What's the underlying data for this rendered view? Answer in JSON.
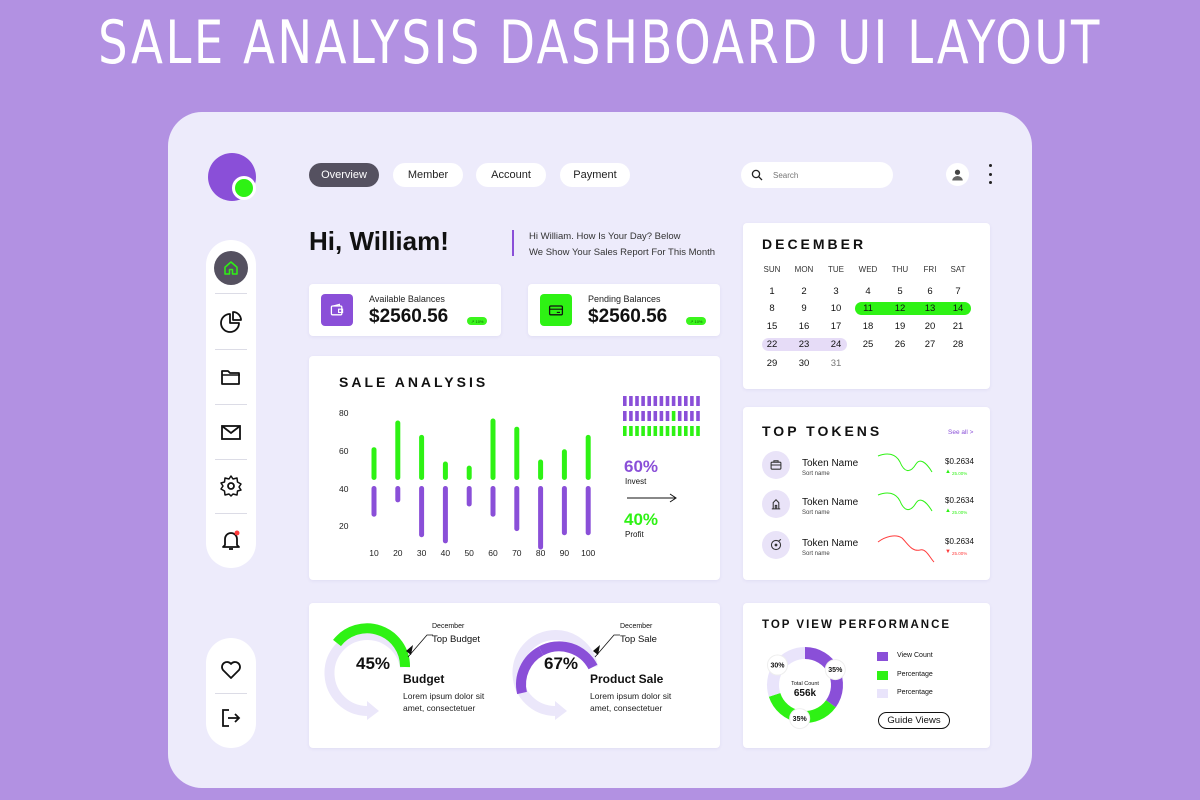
{
  "headline": "SALE ANALYSIS DASHBOARD UI LAYOUT",
  "colors": {
    "accent_purple": "#8a4fd8",
    "accent_green": "#2ef214",
    "background": "#b291e2",
    "panel": "#edebfb",
    "dark_pill": "#555160",
    "down_red": "#ff3b3b"
  },
  "sidebar": {
    "items": [
      {
        "icon": "home-icon"
      },
      {
        "icon": "pie-chart-icon"
      },
      {
        "icon": "folder-icon"
      },
      {
        "icon": "mail-icon"
      },
      {
        "icon": "gear-icon"
      },
      {
        "icon": "bell-icon"
      }
    ],
    "bottom_items": [
      {
        "icon": "heart-icon"
      },
      {
        "icon": "logout-icon"
      }
    ]
  },
  "nav": {
    "tabs": [
      {
        "label": "Overview",
        "active": true
      },
      {
        "label": "Member",
        "active": false
      },
      {
        "label": "Account",
        "active": false
      },
      {
        "label": "Payment",
        "active": false
      }
    ]
  },
  "search": {
    "placeholder": "Search"
  },
  "greeting": {
    "title": "Hi, William!",
    "line1": "Hi William. How Is Your Day? Below",
    "line2": "We Show Your Sales Report For This Month"
  },
  "balances": [
    {
      "label": "Available Balances",
      "value": "$2560.56",
      "badge": "↗ 10%"
    },
    {
      "label": "Pending Balances",
      "value": "$2560.56",
      "badge": "↗ 10%"
    }
  ],
  "sale_analysis": {
    "title": "SALE ANALYSIS",
    "invest_pct": "60%",
    "invest_label": "Invest",
    "profit_pct": "40%",
    "profit_label": "Profit"
  },
  "chart_data": {
    "type": "bar",
    "title": "SALE ANALYSIS",
    "categories": [
      "10",
      "20",
      "30",
      "40",
      "50",
      "60",
      "70",
      "80",
      "90",
      "100"
    ],
    "y_ticks": [
      "80",
      "60",
      "40",
      "20"
    ],
    "series": [
      {
        "name": "Invest",
        "color": "#2ef214",
        "values": [
          16,
          29,
          22,
          9,
          7,
          30,
          26,
          10,
          15,
          22
        ]
      },
      {
        "name": "Profit",
        "color": "#8a4fd8",
        "values": [
          15,
          8,
          25,
          28,
          10,
          15,
          22,
          31,
          24,
          24
        ]
      }
    ],
    "mini_bars": {
      "purple_count": 13,
      "green_count": 13,
      "highlight_index": 8
    }
  },
  "stats": [
    {
      "percent": "45%",
      "progress": 0.45,
      "month": "December",
      "title": "Top Budget",
      "name": "Budget",
      "desc1": "Lorem ipsum dolor sit",
      "desc2": "amet, consectetuer"
    },
    {
      "percent": "67%",
      "progress": 0.67,
      "month": "December",
      "title": "Top Sale",
      "name": "Product Sale",
      "desc1": "Lorem ipsum dolor sit",
      "desc2": "amet, consectetuer"
    }
  ],
  "calendar": {
    "month": "DECEMBER",
    "weekdays": [
      "SUN",
      "MON",
      "TUE",
      "WED",
      "THU",
      "FRI",
      "SAT"
    ],
    "weeks": [
      [
        "1",
        "2",
        "3",
        "4",
        "5",
        "6",
        "7"
      ],
      [
        "8",
        "9",
        "10",
        "11",
        "12",
        "13",
        "14"
      ],
      [
        "15",
        "16",
        "17",
        "18",
        "19",
        "20",
        "21"
      ],
      [
        "22",
        "23",
        "24",
        "25",
        "26",
        "27",
        "28"
      ],
      [
        "29",
        "30",
        "31",
        "",
        "",
        "",
        ""
      ]
    ]
  },
  "tokens": {
    "title": "TOP TOKENS",
    "see_all": "See all >",
    "items": [
      {
        "icon": "briefcase-icon",
        "name": "Token Name",
        "sub": "Sort name",
        "price": "$0.2634",
        "change": "25.00%",
        "direction": "up"
      },
      {
        "icon": "building-icon",
        "name": "Token Name",
        "sub": "Sort name",
        "price": "$0.2634",
        "change": "25.00%",
        "direction": "up"
      },
      {
        "icon": "target-icon",
        "name": "Token Name",
        "sub": "Sort name",
        "price": "$0.2634",
        "change": "25.00%",
        "direction": "down"
      }
    ]
  },
  "performance": {
    "title": "TOP VIEW PERFORMANCE",
    "center_label": "Total Count",
    "center_value": "656k",
    "slices": [
      {
        "label": "35%",
        "value": 35,
        "color": "#8a4fd8"
      },
      {
        "label": "35%",
        "value": 35,
        "color": "#2ef214"
      },
      {
        "label": "30%",
        "value": 30,
        "color": "#e9e4fb"
      }
    ],
    "legend": [
      {
        "label": "View Count",
        "color": "#8a4fd8"
      },
      {
        "label": "Percentage",
        "color": "#2ef214"
      },
      {
        "label": "Percentage",
        "color": "#e9e4fb"
      }
    ],
    "button": "Guide Views"
  }
}
